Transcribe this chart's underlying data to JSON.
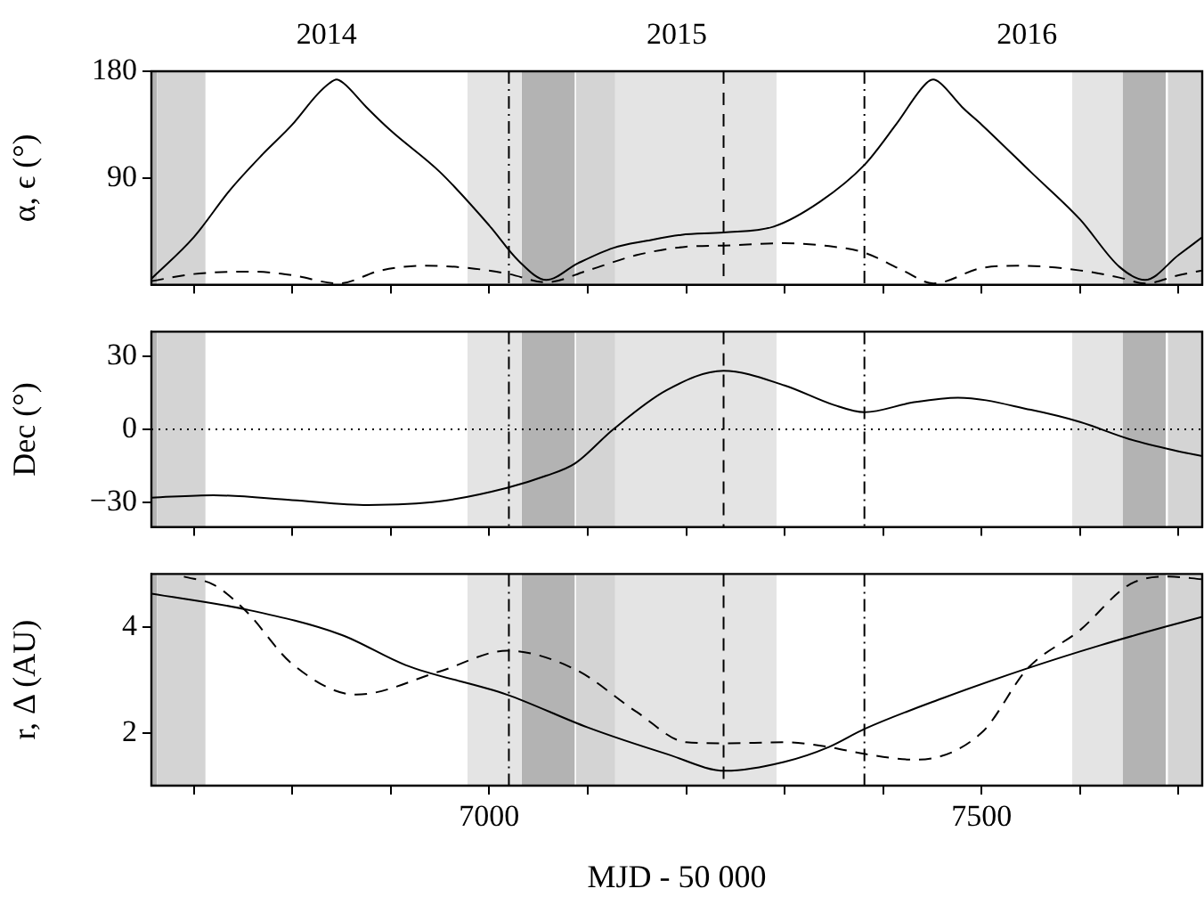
{
  "chart_data": [
    {
      "type": "line",
      "ylabel": "α, ϵ (°)",
      "xlim": [
        6657,
        7724
      ],
      "ylim": [
        0,
        180
      ],
      "yticks": [
        90,
        180
      ],
      "xticks": [
        {
          "value": 6700,
          "label": null
        },
        {
          "value": 6800,
          "label": null
        },
        {
          "value": 6900,
          "label": null
        },
        {
          "value": 7000,
          "label": null
        },
        {
          "value": 7100,
          "label": null
        },
        {
          "value": 7200,
          "label": null
        },
        {
          "value": 7300,
          "label": null
        },
        {
          "value": 7400,
          "label": null
        },
        {
          "value": 7500,
          "label": null
        },
        {
          "value": 7600,
          "label": null
        },
        {
          "value": 7700,
          "label": null
        }
      ],
      "annotations": [
        "2014",
        "2015",
        "2016"
      ],
      "tick_labels": "y",
      "legend": false,
      "grid": false,
      "series": [
        {
          "color": "#000000",
          "line_style": "solid",
          "x": [
            6657,
            6700,
            6737,
            6770,
            6800,
            6825,
            6838,
            6845,
            6852,
            6875,
            6900,
            6950,
            7000,
            7030,
            7058,
            7090,
            7126,
            7160,
            7195,
            7238,
            7289,
            7336,
            7381,
            7413,
            7444,
            7451,
            7458,
            7480,
            7500,
            7550,
            7600,
            7640,
            7666,
            7700,
            7724
          ],
          "values": [
            5,
            40,
            80,
            110,
            135,
            160,
            170,
            173,
            170,
            150,
            130,
            95,
            50,
            20,
            4,
            18,
            31,
            37,
            42,
            44,
            49,
            70,
            101,
            135,
            170,
            173,
            170,
            150,
            135,
            95,
            55,
            15,
            4,
            25,
            40
          ]
        },
        {
          "color": "#000000",
          "line_style": "dashed",
          "x": [
            6657,
            6700,
            6760,
            6800,
            6847,
            6890,
            6935,
            6980,
            7020,
            7058,
            7100,
            7150,
            7200,
            7238,
            7300,
            7350,
            7381,
            7420,
            7451,
            7500,
            7540,
            7600,
            7640,
            7666,
            7700,
            7724
          ],
          "values": [
            3,
            9,
            11,
            8,
            1,
            12,
            16,
            14,
            9,
            2,
            12,
            25,
            32,
            33,
            35,
            32,
            27,
            12,
            1,
            14,
            16,
            12,
            6,
            1,
            8,
            12
          ]
        }
      ],
      "ref_lines": [
        {
          "axis": "x",
          "value": 7020,
          "line_style": "dashdot",
          "color": "#000000"
        },
        {
          "axis": "x",
          "value": 7238,
          "line_style": "dashed",
          "color": "#000000"
        },
        {
          "axis": "x",
          "value": 7381,
          "line_style": "dashdot",
          "color": "#000000"
        }
      ],
      "bands": [
        {
          "axis": "x",
          "from": 6657,
          "to": 6663,
          "color": "#b3b3b3"
        },
        {
          "axis": "x",
          "from": 6663,
          "to": 6712,
          "color": "#d4d4d4"
        },
        {
          "axis": "x",
          "from": 6978,
          "to": 7033,
          "color": "#e4e4e4"
        },
        {
          "axis": "x",
          "from": 7033,
          "to": 7087,
          "color": "#b3b3b3"
        },
        {
          "axis": "x",
          "from": 7088,
          "to": 7128,
          "color": "#d4d4d4"
        },
        {
          "axis": "x",
          "from": 7128,
          "to": 7292,
          "color": "#e4e4e4"
        },
        {
          "axis": "x",
          "from": 7592,
          "to": 7643,
          "color": "#e4e4e4"
        },
        {
          "axis": "x",
          "from": 7643,
          "to": 7687,
          "color": "#b3b3b3"
        },
        {
          "axis": "x",
          "from": 7689,
          "to": 7724,
          "color": "#d4d4d4"
        }
      ]
    },
    {
      "type": "line",
      "ylabel": "Dec (°)",
      "xlim": [
        6657,
        7724
      ],
      "ylim": [
        -40,
        40
      ],
      "yticks": [
        -30,
        0,
        30
      ],
      "xticks": [
        {
          "value": 6700,
          "label": null
        },
        {
          "value": 6800,
          "label": null
        },
        {
          "value": 6900,
          "label": null
        },
        {
          "value": 7000,
          "label": null
        },
        {
          "value": 7100,
          "label": null
        },
        {
          "value": 7200,
          "label": null
        },
        {
          "value": 7300,
          "label": null
        },
        {
          "value": 7400,
          "label": null
        },
        {
          "value": 7500,
          "label": null
        },
        {
          "value": 7600,
          "label": null
        },
        {
          "value": 7700,
          "label": null
        }
      ],
      "tick_labels": "y",
      "legend": false,
      "grid": false,
      "series": [
        {
          "color": "#000000",
          "line_style": "solid",
          "x": [
            6657,
            6720,
            6800,
            6877,
            6950,
            7018,
            7058,
            7087,
            7126,
            7180,
            7238,
            7300,
            7350,
            7381,
            7430,
            7476,
            7550,
            7600,
            7650,
            7700,
            7724
          ],
          "values": [
            -28,
            -27,
            -29,
            -31,
            -29.5,
            -24,
            -19,
            -14,
            0,
            16,
            24,
            18,
            10,
            7,
            11,
            13,
            8,
            3,
            -4,
            -9,
            -11
          ]
        }
      ],
      "ref_lines": [
        {
          "axis": "y",
          "value": 0,
          "line_style": "dotted",
          "color": "#000000"
        },
        {
          "axis": "x",
          "value": 7020,
          "line_style": "dashdot",
          "color": "#000000"
        },
        {
          "axis": "x",
          "value": 7238,
          "line_style": "dashed",
          "color": "#000000"
        },
        {
          "axis": "x",
          "value": 7381,
          "line_style": "dashdot",
          "color": "#000000"
        }
      ],
      "bands": [
        {
          "axis": "x",
          "from": 6657,
          "to": 6663,
          "color": "#b3b3b3"
        },
        {
          "axis": "x",
          "from": 6663,
          "to": 6712,
          "color": "#d4d4d4"
        },
        {
          "axis": "x",
          "from": 6978,
          "to": 7033,
          "color": "#e4e4e4"
        },
        {
          "axis": "x",
          "from": 7033,
          "to": 7087,
          "color": "#b3b3b3"
        },
        {
          "axis": "x",
          "from": 7088,
          "to": 7128,
          "color": "#d4d4d4"
        },
        {
          "axis": "x",
          "from": 7128,
          "to": 7292,
          "color": "#e4e4e4"
        },
        {
          "axis": "x",
          "from": 7592,
          "to": 7643,
          "color": "#e4e4e4"
        },
        {
          "axis": "x",
          "from": 7643,
          "to": 7687,
          "color": "#b3b3b3"
        },
        {
          "axis": "x",
          "from": 7689,
          "to": 7724,
          "color": "#d4d4d4"
        }
      ]
    },
    {
      "type": "line",
      "ylabel": "r, Δ (AU)",
      "xlabel": "MJD - 50 000",
      "xlim": [
        6657,
        7724
      ],
      "ylim": [
        1,
        5
      ],
      "yticks": [
        2,
        4
      ],
      "xticks": [
        {
          "value": 6700,
          "label": null
        },
        {
          "value": 6800,
          "label": null
        },
        {
          "value": 6900,
          "label": null
        },
        7000,
        {
          "value": 7100,
          "label": null
        },
        {
          "value": 7200,
          "label": null
        },
        {
          "value": 7300,
          "label": null
        },
        {
          "value": 7400,
          "label": null
        },
        7500,
        {
          "value": 7600,
          "label": null
        },
        {
          "value": 7700,
          "label": null
        }
      ],
      "legend": false,
      "grid": false,
      "series": [
        {
          "color": "#000000",
          "line_style": "solid",
          "x": [
            6657,
            6753,
            6850,
            6915,
            7018,
            7100,
            7180,
            7240,
            7300,
            7345,
            7381,
            7460,
            7547,
            7620,
            7686,
            7724
          ],
          "values": [
            4.63,
            4.33,
            3.85,
            3.28,
            2.72,
            2.1,
            1.6,
            1.28,
            1.45,
            1.73,
            2.07,
            2.65,
            3.22,
            3.65,
            4.0,
            4.19
          ]
        },
        {
          "color": "#000000",
          "line_style": "dashed",
          "x": [
            6690,
            6720,
            6753,
            6800,
            6865,
            6950,
            7018,
            7087,
            7150,
            7200,
            7238,
            7300,
            7345,
            7381,
            7433,
            7500,
            7547,
            7600,
            7650,
            7690,
            7724
          ],
          "values": [
            4.95,
            4.8,
            4.3,
            3.3,
            2.72,
            3.16,
            3.55,
            3.2,
            2.39,
            1.82,
            1.8,
            1.82,
            1.73,
            1.6,
            1.49,
            2.0,
            3.22,
            3.94,
            4.8,
            4.95,
            4.9
          ]
        }
      ],
      "ref_lines": [
        {
          "axis": "x",
          "value": 7020,
          "line_style": "dashdot",
          "color": "#000000"
        },
        {
          "axis": "x",
          "value": 7238,
          "line_style": "dashed",
          "color": "#000000"
        },
        {
          "axis": "x",
          "value": 7381,
          "line_style": "dashdot",
          "color": "#000000"
        }
      ],
      "bands": [
        {
          "axis": "x",
          "from": 6657,
          "to": 6663,
          "color": "#b3b3b3"
        },
        {
          "axis": "x",
          "from": 6663,
          "to": 6712,
          "color": "#d4d4d4"
        },
        {
          "axis": "x",
          "from": 6978,
          "to": 7033,
          "color": "#e4e4e4"
        },
        {
          "axis": "x",
          "from": 7033,
          "to": 7087,
          "color": "#b3b3b3"
        },
        {
          "axis": "x",
          "from": 7088,
          "to": 7128,
          "color": "#d4d4d4"
        },
        {
          "axis": "x",
          "from": 7128,
          "to": 7292,
          "color": "#e4e4e4"
        },
        {
          "axis": "x",
          "from": 7592,
          "to": 7643,
          "color": "#e4e4e4"
        },
        {
          "axis": "x",
          "from": 7643,
          "to": 7687,
          "color": "#b3b3b3"
        },
        {
          "axis": "x",
          "from": 7689,
          "to": 7724,
          "color": "#d4d4d4"
        }
      ]
    }
  ]
}
